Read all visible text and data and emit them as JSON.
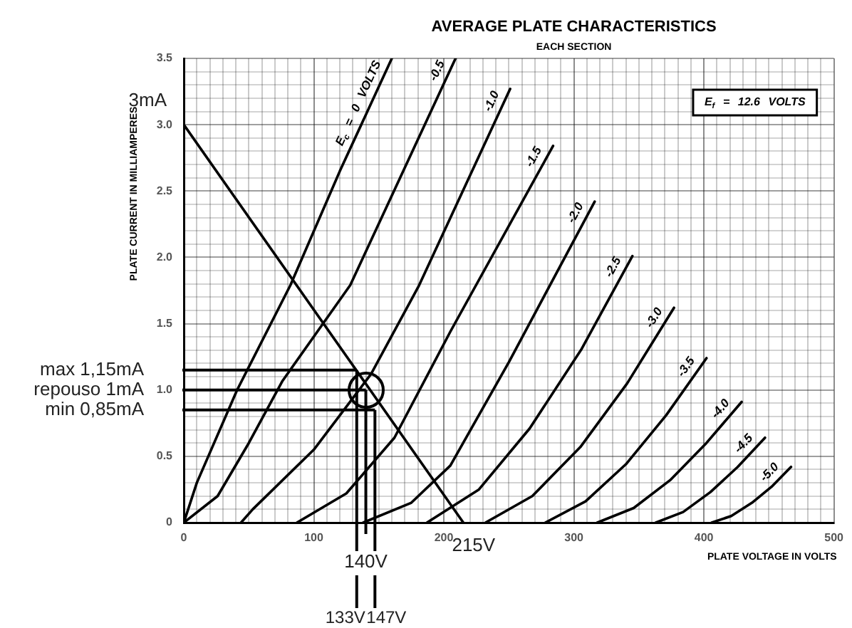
{
  "chart_data": {
    "type": "line",
    "title": "AVERAGE PLATE CHARACTERISTICS",
    "subtitle": "EACH SECTION",
    "xlabel": "PLATE VOLTAGE IN VOLTS",
    "ylabel": "PLATE CURRENT IN MILLIAMPERES",
    "xlim": [
      0,
      500
    ],
    "xticks": [
      0,
      {
        "value": 10,
        "label": null
      },
      {
        "value": 20,
        "label": null
      },
      {
        "value": 30,
        "label": null
      },
      {
        "value": 40,
        "label": null
      },
      {
        "value": 50,
        "label": null
      },
      {
        "value": 60,
        "label": null
      },
      {
        "value": 70,
        "label": null
      },
      {
        "value": 80,
        "label": null
      },
      {
        "value": 90,
        "label": null
      },
      100,
      {
        "value": 110,
        "label": null
      },
      {
        "value": 120,
        "label": null
      },
      {
        "value": 130,
        "label": null
      },
      {
        "value": 140,
        "label": null
      },
      {
        "value": 150,
        "label": null
      },
      {
        "value": 160,
        "label": null
      },
      {
        "value": 170,
        "label": null
      },
      {
        "value": 180,
        "label": null
      },
      {
        "value": 190,
        "label": null
      },
      200,
      {
        "value": 210,
        "label": null
      },
      {
        "value": 220,
        "label": null
      },
      {
        "value": 230,
        "label": null
      },
      {
        "value": 240,
        "label": null
      },
      {
        "value": 250,
        "label": null
      },
      {
        "value": 260,
        "label": null
      },
      {
        "value": 270,
        "label": null
      },
      {
        "value": 280,
        "label": null
      },
      {
        "value": 290,
        "label": null
      },
      300,
      {
        "value": 310,
        "label": null
      },
      {
        "value": 320,
        "label": null
      },
      {
        "value": 330,
        "label": null
      },
      {
        "value": 340,
        "label": null
      },
      {
        "value": 350,
        "label": null
      },
      {
        "value": 360,
        "label": null
      },
      {
        "value": 370,
        "label": null
      },
      {
        "value": 380,
        "label": null
      },
      {
        "value": 390,
        "label": null
      },
      400,
      {
        "value": 410,
        "label": null
      },
      {
        "value": 420,
        "label": null
      },
      {
        "value": 430,
        "label": null
      },
      {
        "value": 440,
        "label": null
      },
      {
        "value": 450,
        "label": null
      },
      {
        "value": 460,
        "label": null
      },
      {
        "value": 470,
        "label": null
      },
      {
        "value": 480,
        "label": null
      },
      {
        "value": 490,
        "label": null
      },
      500
    ],
    "ylim": [
      0,
      3.5
    ],
    "yticks": [
      0,
      {
        "value": 0.1,
        "label": null
      },
      {
        "value": 0.2,
        "label": null
      },
      {
        "value": 0.3,
        "label": null
      },
      {
        "value": 0.4,
        "label": null
      },
      0.5,
      {
        "value": 0.6,
        "label": null
      },
      {
        "value": 0.7,
        "label": null
      },
      {
        "value": 0.8,
        "label": null
      },
      {
        "value": 0.9,
        "label": null
      },
      {
        "value": 1,
        "label": "1.0"
      },
      {
        "value": 1.1,
        "label": null
      },
      {
        "value": 1.2,
        "label": null
      },
      {
        "value": 1.3,
        "label": null
      },
      {
        "value": 1.4,
        "label": null
      },
      1.5,
      {
        "value": 1.6,
        "label": null
      },
      {
        "value": 1.7,
        "label": null
      },
      {
        "value": 1.8,
        "label": null
      },
      {
        "value": 1.9,
        "label": null
      },
      {
        "value": 2,
        "label": "2.0"
      },
      {
        "value": 2.1,
        "label": null
      },
      {
        "value": 2.2,
        "label": null
      },
      {
        "value": 2.3,
        "label": null
      },
      {
        "value": 2.4,
        "label": null
      },
      2.5,
      {
        "value": 2.6,
        "label": null
      },
      {
        "value": 2.7,
        "label": null
      },
      {
        "value": 2.8,
        "label": null
      },
      {
        "value": 2.9,
        "label": null
      },
      {
        "value": 3,
        "label": "3.0"
      },
      {
        "value": 3.1,
        "label": null
      },
      {
        "value": 3.2,
        "label": null
      },
      {
        "value": 3.3,
        "label": null
      },
      {
        "value": 3.4,
        "label": null
      },
      3.5
    ],
    "grid": true,
    "legend": false,
    "marker": "none",
    "line_style": "solid",
    "series": [
      {
        "name": "E$_{c}$ = 0 VOLTS",
        "color": "#000000",
        "x": [
          0,
          10,
          41,
          82,
          120,
          160
        ],
        "values": [
          0,
          0.3,
          1.0,
          1.79,
          2.65,
          3.5
        ]
      },
      {
        "name": "-0.5",
        "color": "#000000",
        "x": [
          0,
          26,
          50,
          76,
          128,
          209
        ],
        "values": [
          0,
          0.2,
          0.6,
          1.07,
          1.79,
          3.5
        ]
      },
      {
        "name": "-1.0",
        "color": "#000000",
        "x": [
          44,
          53,
          100,
          144,
          181,
          251
        ],
        "values": [
          0,
          0.1,
          0.55,
          1.12,
          1.79,
          3.27
        ]
      },
      {
        "name": "-1.5",
        "color": "#000000",
        "x": [
          87,
          125,
          162,
          205,
          284
        ],
        "values": [
          0,
          0.22,
          0.64,
          1.44,
          2.84
        ]
      },
      {
        "name": "-2.0",
        "color": "#000000",
        "x": [
          138,
          175,
          205,
          250,
          316
        ],
        "values": [
          0,
          0.15,
          0.43,
          1.21,
          2.42
        ]
      },
      {
        "name": "-2.5",
        "color": "#000000",
        "x": [
          187,
          227,
          266,
          306,
          345
        ],
        "values": [
          0,
          0.25,
          0.71,
          1.31,
          2.01
        ]
      },
      {
        "name": "-3.0",
        "color": "#000000",
        "x": [
          232,
          268,
          305,
          341,
          377
        ],
        "values": [
          0,
          0.2,
          0.57,
          1.05,
          1.62
        ]
      },
      {
        "name": "-3.5",
        "color": "#000000",
        "x": [
          278,
          309,
          340,
          371,
          402
        ],
        "values": [
          0,
          0.16,
          0.44,
          0.81,
          1.24
        ]
      },
      {
        "name": "-4.0",
        "color": "#000000",
        "x": [
          318,
          346,
          374,
          401,
          429
        ],
        "values": [
          0,
          0.11,
          0.32,
          0.59,
          0.91
        ]
      },
      {
        "name": "-4.5",
        "color": "#000000",
        "x": [
          363,
          384,
          405,
          426,
          447
        ],
        "values": [
          0,
          0.08,
          0.23,
          0.42,
          0.64
        ]
      },
      {
        "name": "-5.0",
        "color": "#000000",
        "x": [
          406,
          421,
          437,
          452,
          467
        ],
        "values": [
          0,
          0.05,
          0.15,
          0.27,
          0.42
        ]
      },
      {
        "color": "#000000",
        "x": [
          0,
          215
        ],
        "values": [
          3,
          0
        ]
      }
    ],
    "ref_lines": [
      {
        "axis": "y",
        "value": 1.15,
        "label": "max 1,15mA"
      },
      {
        "axis": "y",
        "value": 1.0,
        "label": "repouso 1mA"
      },
      {
        "axis": "y",
        "value": 0.85,
        "label": "min 0,85mA"
      },
      {
        "axis": "x",
        "value": 133,
        "label": "133V"
      },
      {
        "axis": "x",
        "value": 140,
        "label": "140V"
      },
      {
        "axis": "x",
        "value": 147,
        "label": "147V"
      }
    ],
    "annotations": [
      {
        "text": "3mA",
        "x": 0,
        "y": 3
      },
      {
        "text": "215V",
        "x": 215,
        "y": 0
      },
      "E$_{f}$ = 12.6 VOLTS"
    ]
  }
}
